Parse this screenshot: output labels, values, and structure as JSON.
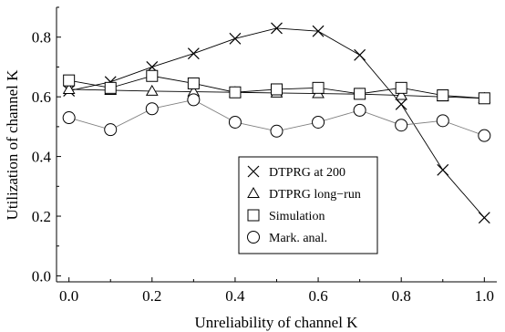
{
  "chart_data": {
    "type": "line",
    "title": "",
    "xlabel": "Unreliability of channel K",
    "ylabel": "Utilization of channel K",
    "xlim": [
      -0.03,
      1.03
    ],
    "ylim": [
      -0.02,
      0.9
    ],
    "xticks": [
      0.0,
      0.2,
      0.4,
      0.6,
      0.8,
      1.0
    ],
    "xtick_labels": [
      "0.0",
      "0.2",
      "0.4",
      "0.6",
      "0.8",
      "1.0"
    ],
    "yticks": [
      0.0,
      0.2,
      0.4,
      0.6,
      0.8
    ],
    "ytick_labels": [
      "0.0",
      "0.2",
      "0.4",
      "0.6",
      "0.8"
    ],
    "x": [
      0.0,
      0.1,
      0.2,
      0.3,
      0.4,
      0.5,
      0.6,
      0.7,
      0.8,
      0.9,
      1.0
    ],
    "series": [
      {
        "name": "DTPRG at 200",
        "marker": "cross",
        "line_color": "#000000",
        "values": [
          0.62,
          0.65,
          0.7,
          0.745,
          0.795,
          0.83,
          0.82,
          0.74,
          0.575,
          0.355,
          0.195
        ]
      },
      {
        "name": "DTPRG long−run",
        "marker": "triangle",
        "line_color": "#000000",
        "values": [
          0.625,
          0.622,
          0.619,
          0.617,
          0.615,
          0.613,
          0.611,
          0.609,
          0.605,
          0.6,
          0.595
        ]
      },
      {
        "name": "Simulation",
        "marker": "square",
        "line_color": "#000000",
        "values": [
          0.655,
          0.63,
          0.67,
          0.645,
          0.615,
          0.625,
          0.63,
          0.61,
          0.63,
          0.605,
          0.595
        ]
      },
      {
        "name": "Mark. anal.",
        "marker": "circle",
        "line_color": "#808080",
        "values": [
          0.53,
          0.49,
          0.56,
          0.59,
          0.515,
          0.485,
          0.515,
          0.555,
          0.505,
          0.52,
          0.47
        ]
      }
    ],
    "legend": {
      "position": "lower-right-inside",
      "framed": true
    },
    "grid": false
  }
}
